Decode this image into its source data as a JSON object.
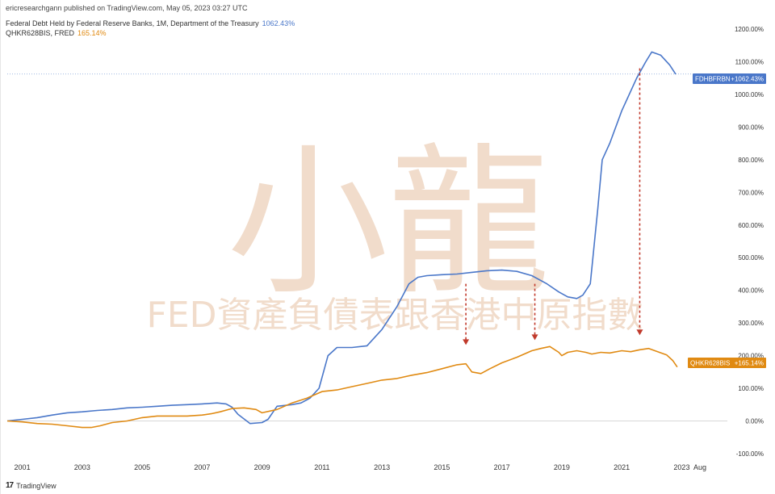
{
  "header": {
    "published": "ericresearchgann published on TradingView.com, May 05, 2023 03:27 UTC",
    "legend": [
      {
        "label": "Federal Debt Held by Federal Reserve Banks, 1M, Department of the Treasury",
        "value": "1062.43%",
        "color": "#4a77c9"
      },
      {
        "label": "QHKR628BIS, FRED",
        "value": "165.14%",
        "color": "#e08a12"
      }
    ]
  },
  "watermark": {
    "title": "小龍",
    "subtitle": "FED資產負債表跟香港中原指數"
  },
  "badges": [
    {
      "symbol": "FDHBFRBN",
      "value": "+1062.43%",
      "color": "#4a77c9"
    },
    {
      "symbol": "QHKR628BIS",
      "value": "+165.14%",
      "color": "#e08a12"
    }
  ],
  "footer": {
    "brand": "TradingView",
    "logo": "TV-logo"
  },
  "chart_data": {
    "type": "line",
    "ylabel_format": "percent",
    "ylim": [
      -115,
      1215
    ],
    "xlim": [
      2000.5,
      2024.2
    ],
    "yticks": [
      "1200.00%",
      "1100.00%",
      "1000.00%",
      "900.00%",
      "800.00%",
      "700.00%",
      "600.00%",
      "500.00%",
      "400.00%",
      "300.00%",
      "200.00%",
      "100.00%",
      "0.00%",
      "-100.00%"
    ],
    "ytick_values": [
      1200,
      1100,
      1000,
      900,
      800,
      700,
      600,
      500,
      400,
      300,
      200,
      100,
      0,
      -100
    ],
    "xticks": [
      {
        "label": "2001",
        "x": 2001
      },
      {
        "label": "2003",
        "x": 2003
      },
      {
        "label": "2005",
        "x": 2005
      },
      {
        "label": "2007",
        "x": 2007
      },
      {
        "label": "2009",
        "x": 2009
      },
      {
        "label": "2011",
        "x": 2011
      },
      {
        "label": "2013",
        "x": 2013
      },
      {
        "label": "2015",
        "x": 2015
      },
      {
        "label": "2017",
        "x": 2017
      },
      {
        "label": "2019",
        "x": 2019
      },
      {
        "label": "2021",
        "x": 2021
      },
      {
        "label": "2023",
        "x": 2023
      },
      {
        "label": "Aug",
        "x": 2024.6
      }
    ],
    "series": [
      {
        "name": "FDHBFRBN",
        "color": "#4a77c9",
        "x": [
          2000.5,
          2001.0,
          2001.5,
          2002.0,
          2002.5,
          2003.0,
          2003.5,
          2004.0,
          2004.5,
          2005.0,
          2005.5,
          2006.0,
          2006.5,
          2007.0,
          2007.5,
          2007.8,
          2008.0,
          2008.2,
          2008.6,
          2009.0,
          2009.2,
          2009.5,
          2010.0,
          2010.3,
          2010.6,
          2010.9,
          2011.2,
          2011.5,
          2012.0,
          2012.5,
          2013.0,
          2013.5,
          2013.9,
          2014.2,
          2014.5,
          2015.0,
          2015.5,
          2016.0,
          2016.5,
          2017.0,
          2017.5,
          2018.0,
          2018.5,
          2018.9,
          2019.2,
          2019.5,
          2019.7,
          2019.95,
          2020.2,
          2020.35,
          2020.6,
          2021.0,
          2021.5,
          2021.8,
          2022.0,
          2022.3,
          2022.6,
          2022.8
        ],
        "y": [
          0,
          5,
          10,
          18,
          25,
          28,
          32,
          35,
          40,
          42,
          45,
          48,
          50,
          52,
          55,
          52,
          42,
          20,
          -8,
          -5,
          5,
          45,
          50,
          55,
          70,
          100,
          200,
          225,
          225,
          230,
          280,
          350,
          420,
          440,
          445,
          448,
          450,
          455,
          460,
          462,
          458,
          445,
          420,
          395,
          380,
          375,
          385,
          420,
          650,
          800,
          850,
          950,
          1050,
          1100,
          1130,
          1120,
          1090,
          1062
        ]
      },
      {
        "name": "QHKR628BIS",
        "color": "#e08a12",
        "x": [
          2000.5,
          2001.0,
          2001.5,
          2002.0,
          2002.5,
          2003.0,
          2003.3,
          2003.6,
          2004.0,
          2004.5,
          2005.0,
          2005.5,
          2006.0,
          2006.5,
          2007.0,
          2007.3,
          2007.6,
          2008.0,
          2008.4,
          2008.8,
          2009.0,
          2009.5,
          2010.0,
          2010.5,
          2011.0,
          2011.5,
          2012.0,
          2012.5,
          2013.0,
          2013.5,
          2014.0,
          2014.5,
          2015.0,
          2015.5,
          2015.8,
          2016.0,
          2016.3,
          2016.6,
          2017.0,
          2017.5,
          2018.0,
          2018.3,
          2018.6,
          2018.9,
          2019.0,
          2019.2,
          2019.5,
          2019.8,
          2020.0,
          2020.3,
          2020.6,
          2021.0,
          2021.3,
          2021.6,
          2021.9,
          2022.2,
          2022.5,
          2022.7,
          2022.85
        ],
        "y": [
          0,
          -3,
          -8,
          -10,
          -15,
          -20,
          -20,
          -15,
          -5,
          0,
          10,
          15,
          15,
          15,
          18,
          22,
          28,
          38,
          40,
          35,
          25,
          35,
          55,
          70,
          90,
          95,
          105,
          115,
          125,
          130,
          140,
          148,
          160,
          172,
          175,
          150,
          145,
          160,
          178,
          195,
          215,
          222,
          228,
          210,
          200,
          210,
          215,
          210,
          205,
          210,
          208,
          215,
          212,
          218,
          222,
          212,
          202,
          185,
          165
        ]
      }
    ],
    "annotations": [
      {
        "type": "arrow",
        "x": 2015.8,
        "y_from": 420,
        "y_to": 235,
        "color": "#c0392b"
      },
      {
        "type": "arrow",
        "x": 2018.1,
        "y_from": 420,
        "y_to": 250,
        "color": "#c0392b"
      },
      {
        "type": "arrow",
        "x": 2021.6,
        "y_from": 1080,
        "y_to": 265,
        "color": "#c0392b"
      }
    ],
    "reference_line": {
      "y": 1062.43,
      "color": "#7fa0d6"
    }
  }
}
